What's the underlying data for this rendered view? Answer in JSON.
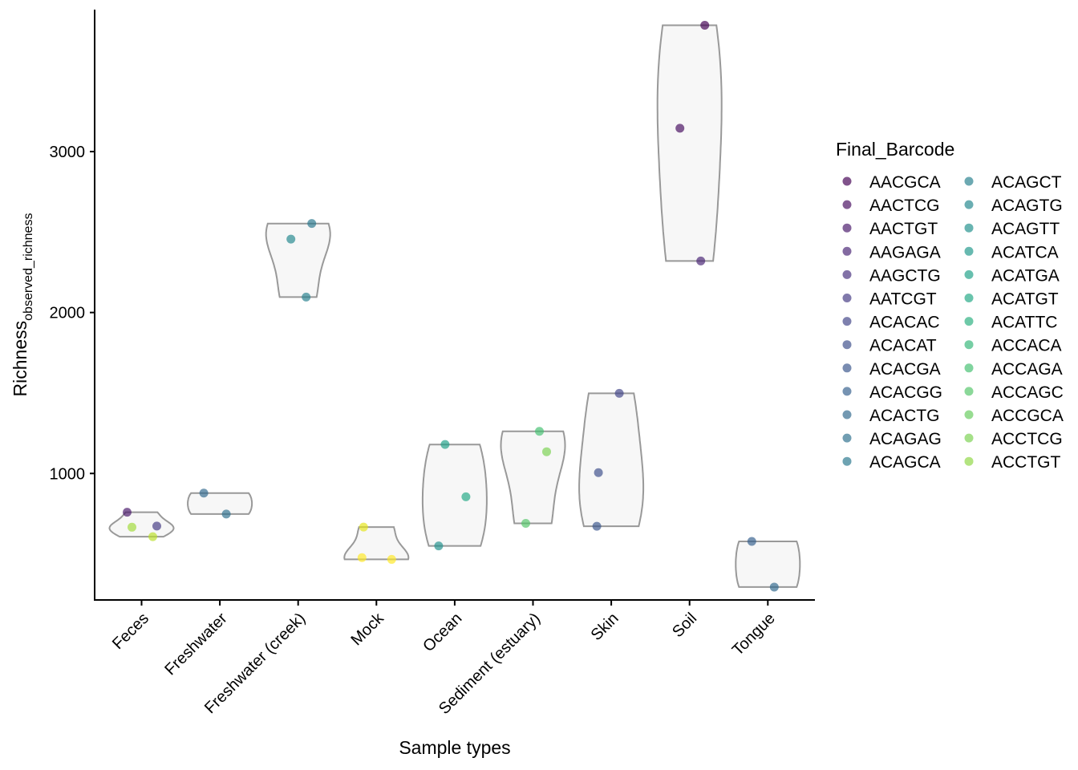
{
  "chart_data": {
    "type": "violin",
    "xlabel": "Sample types",
    "ylabel_main": "Richness",
    "ylabel_sub": "observed_richness",
    "ylim": [
      214,
      3882
    ],
    "yticks": [
      1000,
      2000,
      3000
    ],
    "ytick_labels": [
      "1000",
      "2000",
      "3000"
    ],
    "categories": [
      "Feces",
      "Freshwater",
      "Freshwater (creek)",
      "Mock",
      "Ocean",
      "Sediment (estuary)",
      "Skin",
      "Soil",
      "Tongue"
    ],
    "legend": {
      "title": "Final_Barcode",
      "position": "right",
      "entries": [
        {
          "label": "AACGCA",
          "color": "#440154"
        },
        {
          "label": "AACTCG",
          "color": "#470D60"
        },
        {
          "label": "AACTGT",
          "color": "#48186A"
        },
        {
          "label": "AAGAGA",
          "color": "#482475"
        },
        {
          "label": "AAGCTG",
          "color": "#472F7D"
        },
        {
          "label": "AATCGT",
          "color": "#443A83"
        },
        {
          "label": "ACACAC",
          "color": "#414487"
        },
        {
          "label": "ACACAT",
          "color": "#3D4E8A"
        },
        {
          "label": "ACACGA",
          "color": "#39568C"
        },
        {
          "label": "ACACGG",
          "color": "#35608D"
        },
        {
          "label": "ACACTG",
          "color": "#31688E"
        },
        {
          "label": "ACAGAG",
          "color": "#2D708E"
        },
        {
          "label": "ACAGCA",
          "color": "#2A788E"
        },
        {
          "label": "ACAGCT",
          "color": "#27808E"
        },
        {
          "label": "ACAGTG",
          "color": "#23888E"
        },
        {
          "label": "ACAGTT",
          "color": "#21918C"
        },
        {
          "label": "ACATCA",
          "color": "#1F988B"
        },
        {
          "label": "ACATGA",
          "color": "#1FA088"
        },
        {
          "label": "ACATGT",
          "color": "#22A884"
        },
        {
          "label": "ACATTC",
          "color": "#2AB07F"
        },
        {
          "label": "ACCACA",
          "color": "#35B779"
        },
        {
          "label": "ACCAGA",
          "color": "#44BF70"
        },
        {
          "label": "ACCAGC",
          "color": "#54C568"
        },
        {
          "label": "ACCGCA",
          "color": "#66CB5D"
        },
        {
          "label": "ACCTCG",
          "color": "#7AD151"
        },
        {
          "label": "ACCTGT",
          "color": "#8FD744"
        }
      ]
    },
    "violins": [
      {
        "category": "Feces",
        "values": [
          759,
          673,
          666,
          607
        ]
      },
      {
        "category": "Freshwater",
        "values": [
          878,
          748
        ]
      },
      {
        "category": "Freshwater (creek)",
        "values": [
          2553,
          2456,
          2096
        ]
      },
      {
        "category": "Mock",
        "values": [
          667,
          477,
          466
        ]
      },
      {
        "category": "Ocean",
        "values": [
          1180,
          855,
          550
        ]
      },
      {
        "category": "Sediment (estuary)",
        "values": [
          1262,
          1135,
          690
        ]
      },
      {
        "category": "Skin",
        "values": [
          1498,
          1005,
          672
        ]
      },
      {
        "category": "Soil",
        "values": [
          3785,
          3145,
          2320
        ]
      },
      {
        "category": "Tongue",
        "values": [
          578,
          294
        ]
      }
    ],
    "points": [
      {
        "category": "Feces",
        "barcode": "AACTGT",
        "value": 759,
        "color": "#48186A"
      },
      {
        "category": "Feces",
        "barcode": "AATCGT",
        "value": 673,
        "color": "#443A83"
      },
      {
        "category": "Feces",
        "barcode": "ACCAGC",
        "value": 666,
        "color": "#A0DA39"
      },
      {
        "category": "Feces",
        "barcode": "ACCGCA",
        "value": 607,
        "color": "#BADE28"
      },
      {
        "category": "Freshwater",
        "barcode": "ACACTG",
        "value": 878,
        "color": "#31688E"
      },
      {
        "category": "Freshwater",
        "barcode": "ACAGAG",
        "value": 748,
        "color": "#2D708E"
      },
      {
        "category": "Freshwater (creek)",
        "barcode": "ACAGCA",
        "value": 2553,
        "color": "#2A788E"
      },
      {
        "category": "Freshwater (creek)",
        "barcode": "ACAGTG",
        "value": 2456,
        "color": "#23888E"
      },
      {
        "category": "Freshwater (creek)",
        "barcode": "ACAGCT",
        "value": 2096,
        "color": "#27808E"
      },
      {
        "category": "Mock",
        "barcode": "ACCTCG",
        "value": 667,
        "color": "#E5E419"
      },
      {
        "category": "Mock",
        "barcode": "ACCTGT",
        "value": 477,
        "color": "#FDE725"
      },
      {
        "category": "Mock",
        "barcode": "ACCTGT",
        "value": 466,
        "color": "#FDE725"
      },
      {
        "category": "Ocean",
        "barcode": "ACATGA",
        "value": 1180,
        "color": "#1FA088"
      },
      {
        "category": "Ocean",
        "barcode": "ACATCA",
        "value": 855,
        "color": "#22A884"
      },
      {
        "category": "Ocean",
        "barcode": "ACAGTT",
        "value": 550,
        "color": "#21918C"
      },
      {
        "category": "Sediment (estuary)",
        "barcode": "ACATTC",
        "value": 1262,
        "color": "#44BF70"
      },
      {
        "category": "Sediment (estuary)",
        "barcode": "ACCACA",
        "value": 1135,
        "color": "#7AD151"
      },
      {
        "category": "Sediment (estuary)",
        "barcode": "ACATGT",
        "value": 690,
        "color": "#54C568"
      },
      {
        "category": "Skin",
        "barcode": "ACACAC",
        "value": 1498,
        "color": "#414487"
      },
      {
        "category": "Skin",
        "barcode": "ACACAT",
        "value": 1005,
        "color": "#3D4E8A"
      },
      {
        "category": "Skin",
        "barcode": "ACACGA",
        "value": 672,
        "color": "#39568C"
      },
      {
        "category": "Soil",
        "barcode": "AACGCA",
        "value": 3785,
        "color": "#440154"
      },
      {
        "category": "Soil",
        "barcode": "AACTCG",
        "value": 3145,
        "color": "#470D60"
      },
      {
        "category": "Soil",
        "barcode": "AAGAGA",
        "value": 2320,
        "color": "#482475"
      },
      {
        "category": "Tongue",
        "barcode": "ACACGG",
        "value": 578,
        "color": "#35608D"
      },
      {
        "category": "Tongue",
        "barcode": "ACACTG",
        "value": 294,
        "color": "#31688E"
      }
    ]
  }
}
